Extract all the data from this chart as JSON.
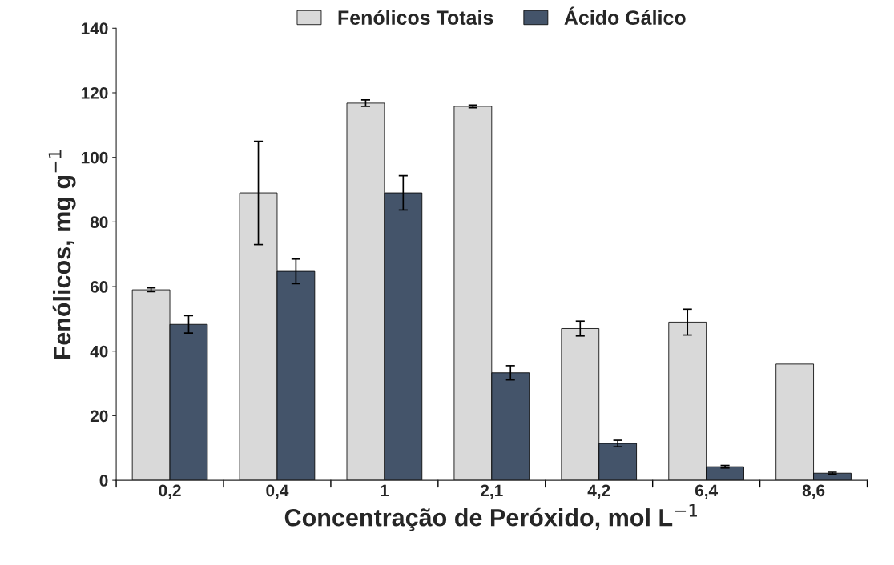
{
  "chart_data": {
    "type": "bar",
    "xlabel": "Concentração de Peróxido, mol L$^{−1}$",
    "ylabel": "Fenólicos, mg g$^{−1}$",
    "categories": [
      "0,2",
      "0,4",
      "1",
      "2,1",
      "4,2",
      "6,4",
      "8,6"
    ],
    "series": [
      {
        "name": "Fenólicos Totais",
        "color": "#d9d9d9",
        "values": [
          59,
          89,
          116.8,
          115.8,
          47,
          49,
          36
        ],
        "errors": [
          0.6,
          16,
          1,
          0.4,
          2.3,
          4,
          null
        ]
      },
      {
        "name": "Ácido Gálico",
        "color": "#44546a",
        "values": [
          48.3,
          64.7,
          89,
          33.3,
          11.4,
          4.2,
          2.2
        ],
        "errors": [
          2.7,
          3.8,
          5.3,
          2.2,
          1,
          0.4,
          0.3
        ]
      }
    ],
    "ylim": [
      0,
      140
    ],
    "yticks": [
      0,
      20,
      40,
      60,
      80,
      100,
      120,
      140
    ],
    "grid": false,
    "legend": "top"
  }
}
